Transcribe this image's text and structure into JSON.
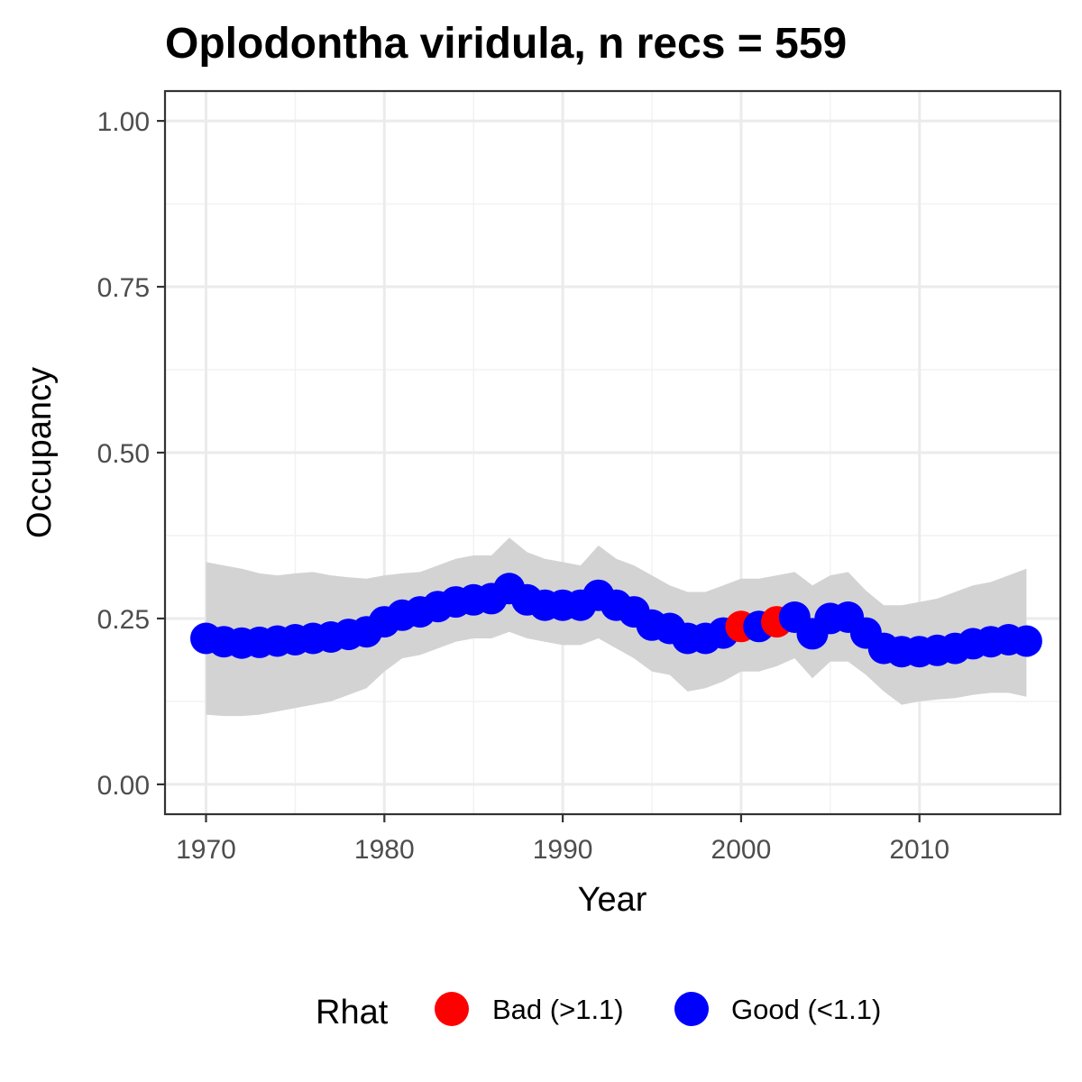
{
  "chart_data": {
    "type": "line",
    "title": "Oplodontha viridula, n recs = 559",
    "xlabel": "Year",
    "ylabel": "Occupancy",
    "xlim": [
      1967.7,
      2017.9
    ],
    "ylim": [
      -0.045,
      1.045
    ],
    "x_ticks": [
      1970,
      1980,
      1990,
      2000,
      2010
    ],
    "x_tick_labels": [
      "1970",
      "1980",
      "1990",
      "2000",
      "2010"
    ],
    "y_ticks": [
      0,
      0.25,
      0.5,
      0.75,
      1
    ],
    "y_tick_labels": [
      "0.00",
      "0.25",
      "0.50",
      "0.75",
      "1.00"
    ],
    "grid": true,
    "legend": {
      "title": "Rhat",
      "position": "bottom",
      "entries": [
        {
          "label": "Bad (>1.1)",
          "color": "#ff0000"
        },
        {
          "label": "Good (<1.1)",
          "color": "#0000ff"
        }
      ]
    },
    "ribbon_color": "#d3d3d3",
    "x": [
      1970,
      1971,
      1972,
      1973,
      1974,
      1975,
      1976,
      1977,
      1978,
      1979,
      1980,
      1981,
      1982,
      1983,
      1984,
      1985,
      1986,
      1987,
      1988,
      1989,
      1990,
      1991,
      1992,
      1993,
      1994,
      1995,
      1996,
      1997,
      1998,
      1999,
      2000,
      2001,
      2002,
      2003,
      2004,
      2005,
      2006,
      2007,
      2008,
      2009,
      2010,
      2011,
      2012,
      2013,
      2014,
      2015,
      2016
    ],
    "mean": [
      0.22,
      0.215,
      0.213,
      0.214,
      0.216,
      0.218,
      0.22,
      0.222,
      0.226,
      0.23,
      0.245,
      0.255,
      0.26,
      0.268,
      0.275,
      0.278,
      0.28,
      0.295,
      0.278,
      0.27,
      0.27,
      0.27,
      0.285,
      0.27,
      0.26,
      0.24,
      0.235,
      0.22,
      0.22,
      0.228,
      0.238,
      0.238,
      0.245,
      0.252,
      0.227,
      0.25,
      0.252,
      0.228,
      0.205,
      0.2,
      0.2,
      0.202,
      0.205,
      0.212,
      0.215,
      0.218,
      0.216
    ],
    "lower": [
      0.105,
      0.103,
      0.103,
      0.105,
      0.11,
      0.115,
      0.12,
      0.125,
      0.135,
      0.145,
      0.17,
      0.19,
      0.195,
      0.205,
      0.215,
      0.22,
      0.22,
      0.23,
      0.22,
      0.215,
      0.21,
      0.21,
      0.22,
      0.205,
      0.19,
      0.17,
      0.165,
      0.14,
      0.145,
      0.155,
      0.17,
      0.17,
      0.178,
      0.19,
      0.16,
      0.185,
      0.185,
      0.165,
      0.14,
      0.12,
      0.125,
      0.128,
      0.13,
      0.135,
      0.138,
      0.138,
      0.132
    ],
    "upper": [
      0.335,
      0.33,
      0.325,
      0.318,
      0.315,
      0.318,
      0.32,
      0.315,
      0.312,
      0.31,
      0.315,
      0.318,
      0.32,
      0.33,
      0.34,
      0.345,
      0.345,
      0.372,
      0.35,
      0.34,
      0.335,
      0.33,
      0.36,
      0.34,
      0.33,
      0.315,
      0.3,
      0.29,
      0.29,
      0.3,
      0.31,
      0.31,
      0.315,
      0.32,
      0.3,
      0.315,
      0.32,
      0.292,
      0.27,
      0.27,
      0.275,
      0.28,
      0.29,
      0.3,
      0.305,
      0.315,
      0.325
    ],
    "rhat": [
      "Good",
      "Good",
      "Good",
      "Good",
      "Good",
      "Good",
      "Good",
      "Good",
      "Good",
      "Good",
      "Good",
      "Good",
      "Good",
      "Good",
      "Good",
      "Good",
      "Good",
      "Good",
      "Good",
      "Good",
      "Good",
      "Good",
      "Good",
      "Good",
      "Good",
      "Good",
      "Good",
      "Good",
      "Good",
      "Good",
      "Bad",
      "Good",
      "Bad",
      "Good",
      "Good",
      "Good",
      "Good",
      "Good",
      "Good",
      "Good",
      "Good",
      "Good",
      "Good",
      "Good",
      "Good",
      "Good",
      "Good"
    ]
  }
}
